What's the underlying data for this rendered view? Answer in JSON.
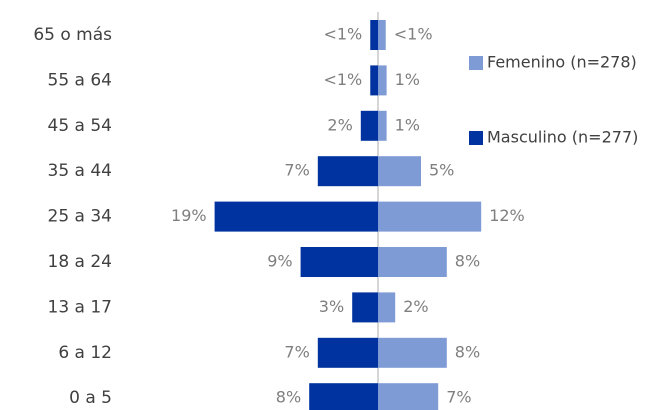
{
  "chart_data": {
    "type": "bar",
    "legend": "right",
    "categories": [
      "65 o más",
      "55 a 64",
      "45 a 54",
      "35 a 44",
      "25 a 34",
      "18 a 24",
      "13 a 17",
      "6 a 12",
      "0 a 5"
    ],
    "series": [
      {
        "name": "Femenino (n=278)",
        "color": "#7f9bd6",
        "side": "right",
        "values": [
          0.9,
          1,
          1,
          5,
          12,
          8,
          2,
          8,
          7
        ],
        "value_labels": [
          "<1%",
          "1%",
          "1%",
          "5%",
          "12%",
          "8%",
          "2%",
          "8%",
          "7%"
        ]
      },
      {
        "name": "Masculino (n=277)",
        "color": "#0033a0",
        "side": "left",
        "values": [
          0.9,
          0.9,
          2,
          7,
          19,
          9,
          3,
          7,
          8
        ],
        "value_labels": [
          "<1%",
          "<1%",
          "2%",
          "7%",
          "19%",
          "9%",
          "3%",
          "7%",
          "8%"
        ]
      }
    ]
  }
}
